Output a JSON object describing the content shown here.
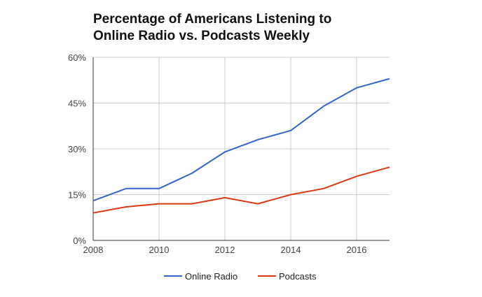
{
  "chart_data": {
    "type": "line",
    "title_lines": [
      "Percentage of Americans Listening to",
      "Online Radio vs. Podcasts Weekly"
    ],
    "xlabel": "",
    "ylabel": "",
    "x": [
      2008,
      2009,
      2010,
      2011,
      2012,
      2013,
      2014,
      2015,
      2016,
      2017
    ],
    "xlim": [
      2008,
      2017
    ],
    "x_ticks": [
      2008,
      2010,
      2012,
      2014,
      2016
    ],
    "x_tick_labels": [
      "2008",
      "2010",
      "2012",
      "2014",
      "2016"
    ],
    "ylim": [
      0,
      60
    ],
    "y_ticks": [
      0,
      15,
      30,
      45,
      60
    ],
    "y_tick_labels": [
      "0%",
      "15%",
      "30%",
      "45%",
      "60%"
    ],
    "grid": true,
    "legend_position": "bottom",
    "series": [
      {
        "name": "Online Radio",
        "color": "#3366cc",
        "values": [
          13,
          17,
          17,
          22,
          29,
          33,
          36,
          44,
          50,
          53
        ]
      },
      {
        "name": "Podcasts",
        "color": "#dc3912",
        "values": [
          9,
          11,
          12,
          12,
          14,
          12,
          15,
          17,
          21,
          24
        ]
      }
    ]
  }
}
